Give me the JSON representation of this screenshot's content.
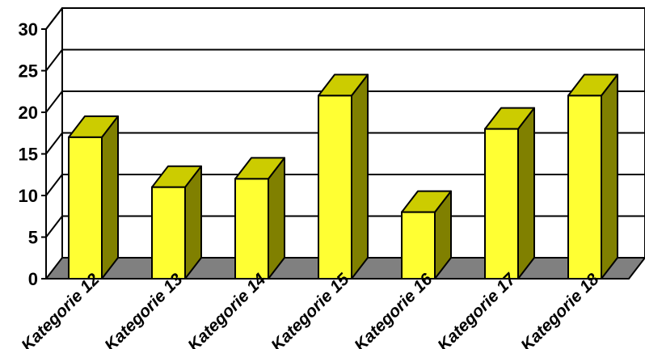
{
  "chart_data": {
    "type": "bar",
    "style": "3d",
    "categories": [
      "Kategorie 12",
      "Kategorie 13",
      "Kategorie 14",
      "Kategorie 15",
      "Kategorie 16",
      "Kategorie 17",
      "Kategorie 18"
    ],
    "values": [
      17,
      11,
      12,
      22,
      8,
      18,
      22
    ],
    "title": "",
    "xlabel": "",
    "ylabel": "",
    "ylim": [
      0,
      30
    ],
    "yticks": [
      "0",
      "5",
      "10",
      "15",
      "20",
      "25",
      "30"
    ],
    "grid": true,
    "legend": "none",
    "colors": {
      "bar_front": "#ffff33",
      "bar_top": "#cccc00",
      "bar_side": "#808000",
      "floor": "#808080",
      "gridline": "#000000"
    }
  }
}
